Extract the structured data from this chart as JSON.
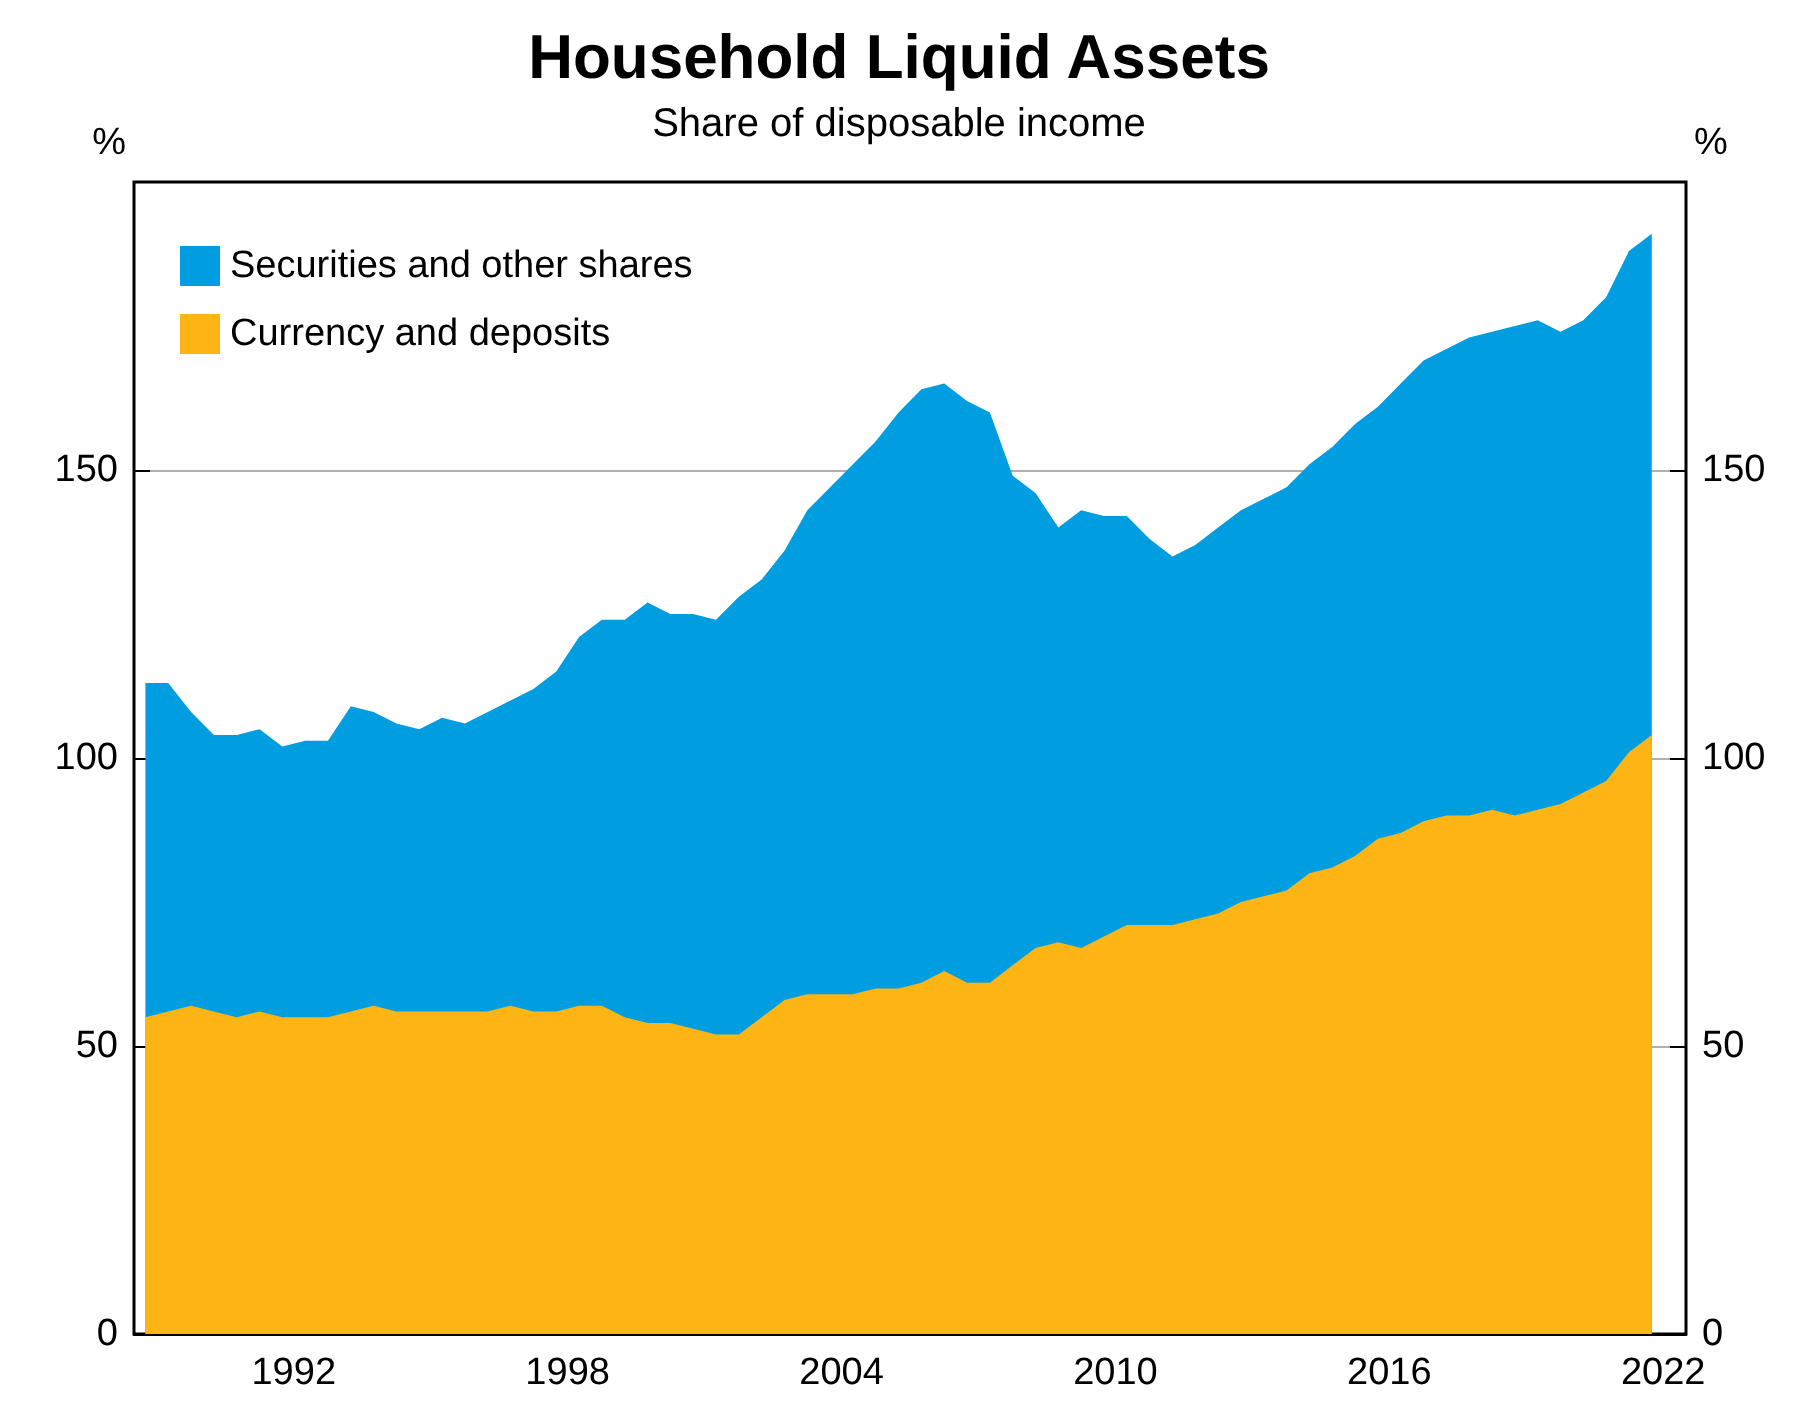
{
  "chart_data": {
    "type": "area",
    "title": "Household Liquid Assets",
    "subtitle": "Share of disposable income",
    "ylabel": "%",
    "y2label": "%",
    "x": [
      1989.25,
      1989.75,
      1990.25,
      1990.75,
      1991.25,
      1991.75,
      1992.25,
      1992.75,
      1993.25,
      1993.75,
      1994.25,
      1994.75,
      1995.25,
      1995.75,
      1996.25,
      1996.75,
      1997.25,
      1997.75,
      1998.25,
      1998.75,
      1999.25,
      1999.75,
      2000.25,
      2000.75,
      2001.25,
      2001.75,
      2002.25,
      2002.75,
      2003.25,
      2003.75,
      2004.25,
      2004.75,
      2005.25,
      2005.75,
      2006.25,
      2006.75,
      2007.25,
      2007.75,
      2008.25,
      2008.75,
      2009.25,
      2009.75,
      2010.25,
      2010.75,
      2011.25,
      2011.75,
      2012.25,
      2012.75,
      2013.25,
      2013.75,
      2014.25,
      2014.75,
      2015.25,
      2015.75,
      2016.25,
      2016.75,
      2017.25,
      2017.75,
      2018.25,
      2018.75,
      2019.25,
      2019.75,
      2020.25,
      2020.75,
      2021.25,
      2021.75,
      2022.25
    ],
    "stacked": true,
    "series": [
      {
        "name": "Currency and deposits",
        "color": "#fdb515",
        "values": [
          55,
          56,
          57,
          56,
          55,
          56,
          55,
          55,
          55,
          56,
          57,
          56,
          56,
          56,
          56,
          56,
          57,
          56,
          56,
          57,
          57,
          55,
          54,
          54,
          53,
          52,
          52,
          55,
          58,
          59,
          59,
          59,
          60,
          60,
          61,
          63,
          61,
          61,
          64,
          67,
          68,
          67,
          69,
          71,
          71,
          71,
          72,
          73,
          75,
          76,
          77,
          80,
          81,
          83,
          86,
          87,
          89,
          90,
          90,
          91,
          90,
          91,
          92,
          94,
          96,
          101,
          104
        ]
      },
      {
        "name": "Securities and other shares",
        "color": "#009ee0",
        "values": [
          58,
          57,
          51,
          48,
          49,
          49,
          47,
          48,
          48,
          53,
          51,
          50,
          49,
          51,
          50,
          52,
          53,
          56,
          59,
          64,
          67,
          69,
          73,
          71,
          72,
          72,
          76,
          76,
          78,
          84,
          88,
          92,
          95,
          100,
          103,
          102,
          101,
          99,
          85,
          79,
          72,
          76,
          73,
          71,
          67,
          64,
          65,
          67,
          68,
          69,
          70,
          71,
          73,
          75,
          75,
          78,
          80,
          81,
          83,
          83,
          85,
          85,
          82,
          82,
          84,
          87,
          87
        ]
      }
    ],
    "xlim": [
      1989,
      2023
    ],
    "xticks": [
      {
        "value": 1990,
        "label": null
      },
      {
        "value": 1991,
        "label": null
      },
      {
        "value": 1992,
        "label": null
      },
      {
        "value": 1992.5,
        "label": "1992"
      },
      {
        "value": 1993,
        "label": null
      },
      {
        "value": 1994,
        "label": null
      },
      {
        "value": 1995,
        "label": null
      },
      {
        "value": 1996,
        "label": null
      },
      {
        "value": 1997,
        "label": null
      },
      {
        "value": 1998,
        "label": null
      },
      {
        "value": 1998.5,
        "label": "1998"
      },
      {
        "value": 1999,
        "label": null
      },
      {
        "value": 2000,
        "label": null
      },
      {
        "value": 2001,
        "label": null
      },
      {
        "value": 2002,
        "label": null
      },
      {
        "value": 2003,
        "label": null
      },
      {
        "value": 2004,
        "label": null
      },
      {
        "value": 2004.5,
        "label": "2004"
      },
      {
        "value": 2005,
        "label": null
      },
      {
        "value": 2006,
        "label": null
      },
      {
        "value": 2007,
        "label": null
      },
      {
        "value": 2008,
        "label": null
      },
      {
        "value": 2009,
        "label": null
      },
      {
        "value": 2010,
        "label": null
      },
      {
        "value": 2010.5,
        "label": "2010"
      },
      {
        "value": 2011,
        "label": null
      },
      {
        "value": 2012,
        "label": null
      },
      {
        "value": 2013,
        "label": null
      },
      {
        "value": 2014,
        "label": null
      },
      {
        "value": 2015,
        "label": null
      },
      {
        "value": 2016,
        "label": null
      },
      {
        "value": 2016.5,
        "label": "2016"
      },
      {
        "value": 2017,
        "label": null
      },
      {
        "value": 2018,
        "label": null
      },
      {
        "value": 2019,
        "label": null
      },
      {
        "value": 2020,
        "label": null
      },
      {
        "value": 2021,
        "label": null
      },
      {
        "value": 2022,
        "label": null
      },
      {
        "value": 2022.5,
        "label": "2022"
      }
    ],
    "ylim": [
      0,
      200
    ],
    "yticks": [
      0,
      50,
      100,
      150
    ],
    "y2lim": [
      0,
      200
    ],
    "y2ticks": [
      0,
      50,
      100,
      150
    ],
    "grid": "y",
    "legend": "top left"
  }
}
